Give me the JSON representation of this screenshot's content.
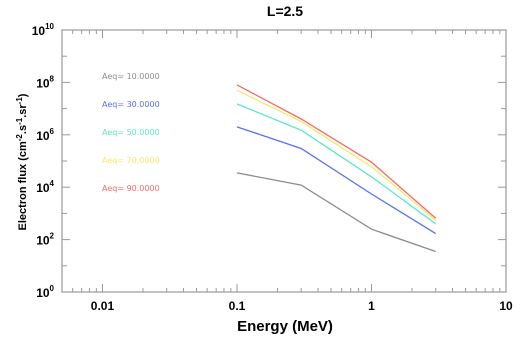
{
  "chart_data": {
    "type": "line",
    "title": "L=2.5",
    "xlabel": "Energy (MeV)",
    "ylabel": {
      "text": "Electron flux (cm",
      "sup1": "-2",
      "mid": ".s",
      "sup2": "-1",
      "mid2": ".sr",
      "sup3": "-1",
      "end": ")"
    },
    "xscale": "log",
    "yscale": "log",
    "xlim": [
      0.005,
      10
    ],
    "ylim": [
      1,
      10000000000
    ],
    "x_ticks": [
      {
        "value": 0.01,
        "label": "0.01"
      },
      {
        "value": 0.1,
        "label": "0.1"
      },
      {
        "value": 1,
        "label": "1"
      },
      {
        "value": 10,
        "label": "10"
      }
    ],
    "y_ticks": [
      {
        "value": 1,
        "base": "10",
        "exp": "0"
      },
      {
        "value": 100,
        "base": "10",
        "exp": "2"
      },
      {
        "value": 10000,
        "base": "10",
        "exp": "4"
      },
      {
        "value": 1000000,
        "base": "10",
        "exp": "6"
      },
      {
        "value": 100000000,
        "base": "10",
        "exp": "8"
      },
      {
        "value": 10000000000,
        "base": "10",
        "exp": "10"
      }
    ],
    "grid": false,
    "legend_position": "top-left",
    "x": [
      0.1,
      0.3,
      1.0,
      3.0
    ],
    "series": [
      {
        "name": "Aeq= 10.0000",
        "color": "#8c8c8c",
        "values": [
          35000,
          12000,
          250,
          35
        ]
      },
      {
        "name": "Aeq= 30.0000",
        "color": "#5a6ff0",
        "values": [
          2000000,
          300000,
          5500,
          170
        ]
      },
      {
        "name": "Aeq= 50.0000",
        "color": "#5ce8c4",
        "values": [
          15000000,
          1500000,
          25000,
          400
        ]
      },
      {
        "name": "Aeq= 70.0000",
        "color": "#f6e86a",
        "values": [
          50000000,
          3200000,
          60000,
          550
        ]
      },
      {
        "name": "Aeq= 90.0000",
        "color": "#f06a6a",
        "values": [
          80000000,
          4000000,
          90000,
          650
        ]
      }
    ]
  }
}
